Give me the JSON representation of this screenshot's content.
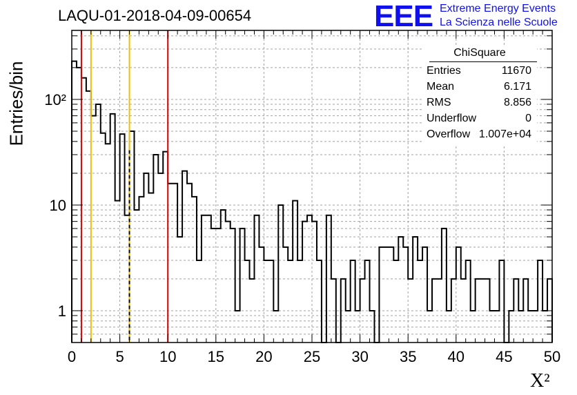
{
  "header": {
    "run_id": "LAQU-01-2018-04-09-00654",
    "logo_text": "EEE",
    "logo_line1": "Extreme Energy Events",
    "logo_line2": "La Scienza nelle Scuole"
  },
  "stats_box": {
    "title": "ChiSquare",
    "rows": [
      {
        "label": "Entries",
        "value": "11670"
      },
      {
        "label": "Mean",
        "value": "6.171"
      },
      {
        "label": "RMS",
        "value": "8.856"
      },
      {
        "label": "Underflow",
        "value": "0"
      },
      {
        "label": "Overflow",
        "value": "1.007e+04"
      }
    ]
  },
  "colors": {
    "histogram": "#000000",
    "red_line": "#dd0000",
    "yellow_line": "#f0c000",
    "dashed_line": "#000000",
    "grid": "#a0a0a0"
  },
  "chart_data": {
    "type": "histogram",
    "title": "LAQU-01-2018-04-09-00654",
    "xlabel": "X²",
    "ylabel": "Entries/bin",
    "y_scale": "log",
    "xlim": [
      0,
      50
    ],
    "ylim": [
      0.5,
      450
    ],
    "x_ticks": [
      "0",
      "5",
      "10",
      "15",
      "20",
      "25",
      "30",
      "35",
      "40",
      "45",
      "50"
    ],
    "y_ticks": [
      "1",
      "10",
      "10²"
    ],
    "grid": true,
    "bin_width": 0.5,
    "values": [
      230,
      200,
      160,
      120,
      70,
      90,
      48,
      38,
      73,
      11,
      47,
      8,
      50,
      9,
      12,
      20,
      13,
      30,
      20,
      32,
      16,
      16,
      5,
      21,
      16,
      12,
      3,
      8,
      8,
      6,
      6,
      9,
      7,
      6,
      1,
      6,
      3,
      2,
      8,
      4,
      3,
      3,
      1,
      10,
      4,
      3,
      11,
      3,
      7,
      8,
      7,
      3,
      0,
      8,
      2,
      0,
      2,
      1,
      3,
      1,
      2,
      3,
      1,
      0,
      4,
      4,
      4,
      3,
      5,
      4,
      2,
      5,
      3,
      4,
      1,
      2,
      2,
      6,
      1,
      2,
      4,
      2,
      3,
      1,
      2,
      2,
      2,
      1,
      1,
      3,
      0,
      1,
      2,
      1,
      2,
      1,
      1,
      3,
      1,
      2
    ],
    "vertical_lines": [
      {
        "x": 1,
        "style": "red"
      },
      {
        "x": 2,
        "style": "yellow"
      },
      {
        "x": 6,
        "style": "yellow"
      },
      {
        "x": 6,
        "style": "dashed"
      },
      {
        "x": 10,
        "style": "red"
      }
    ]
  }
}
